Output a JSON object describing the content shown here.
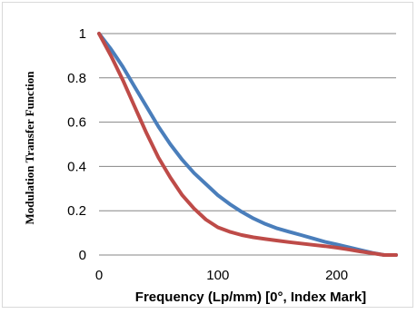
{
  "chart_data": {
    "type": "line",
    "xlabel": "Frequency (Lp/mm) [0°, Index Mark]",
    "ylabel": "Modulation Transfer Function",
    "xlim": [
      0,
      250
    ],
    "ylim": [
      0,
      1
    ],
    "xticks": [
      "0",
      "100",
      "200"
    ],
    "yticks": [
      "0",
      "0.2",
      "0.4",
      "0.6",
      "0.8",
      "1"
    ],
    "grid": "horizontal",
    "legend": "none",
    "series": [
      {
        "color": "#4a7ebb",
        "x": [
          0,
          10,
          20,
          30,
          40,
          50,
          60,
          70,
          80,
          90,
          100,
          110,
          120,
          130,
          140,
          150,
          160,
          170,
          180,
          190,
          200,
          210,
          220,
          230,
          240,
          250
        ],
        "y": [
          1.0,
          0.93,
          0.85,
          0.76,
          0.67,
          0.58,
          0.5,
          0.43,
          0.37,
          0.32,
          0.27,
          0.23,
          0.195,
          0.165,
          0.14,
          0.12,
          0.105,
          0.09,
          0.075,
          0.06,
          0.048,
          0.035,
          0.022,
          0.01,
          0.0,
          0.0
        ]
      },
      {
        "color": "#be4b48",
        "x": [
          0,
          10,
          20,
          30,
          40,
          50,
          60,
          70,
          80,
          90,
          100,
          110,
          120,
          130,
          140,
          150,
          160,
          170,
          180,
          190,
          200,
          210,
          220,
          230,
          240,
          250
        ],
        "y": [
          1.0,
          0.9,
          0.79,
          0.67,
          0.55,
          0.44,
          0.35,
          0.27,
          0.21,
          0.16,
          0.125,
          0.105,
          0.09,
          0.08,
          0.072,
          0.065,
          0.058,
          0.052,
          0.046,
          0.04,
          0.033,
          0.025,
          0.016,
          0.008,
          0.0,
          0.0
        ]
      }
    ]
  }
}
